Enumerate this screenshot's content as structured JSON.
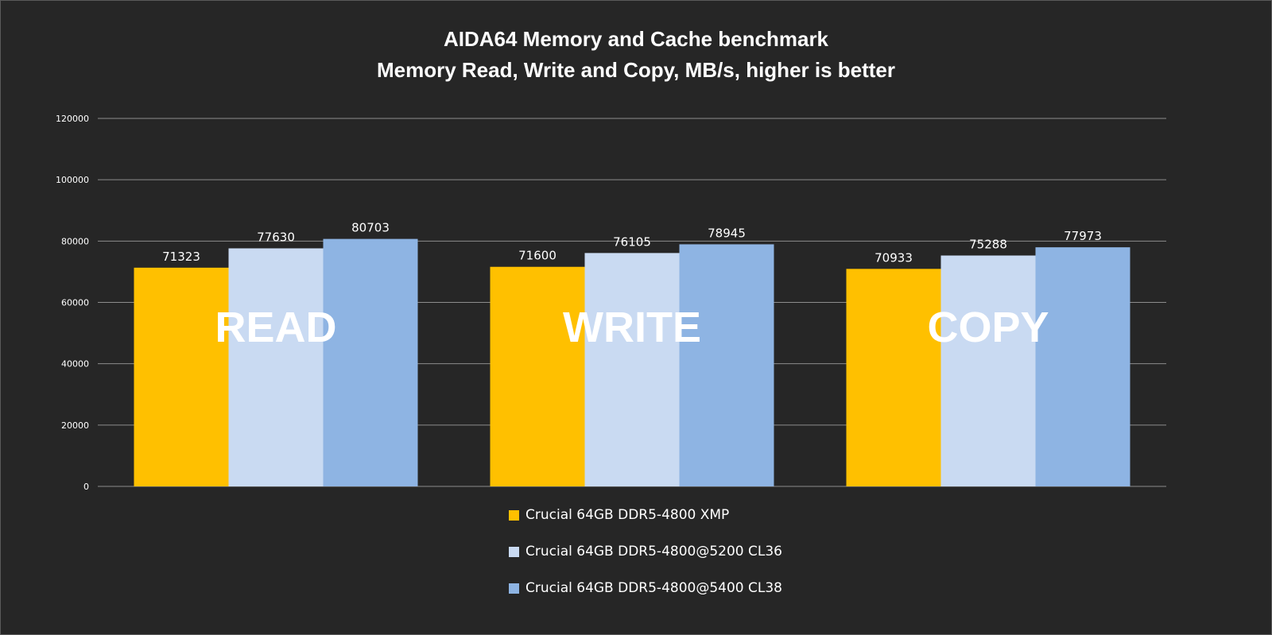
{
  "chart_data": {
    "type": "bar",
    "title": "AIDA64 Memory and Cache benchmark",
    "subtitle": "Memory Read, Write and Copy, MB/s, higher is better",
    "categories": [
      "READ",
      "WRITE",
      "COPY"
    ],
    "series": [
      {
        "name": "Crucial 64GB DDR5-4800 XMP",
        "color": "#FFC000",
        "values": [
          71323,
          71600,
          70933
        ]
      },
      {
        "name": "Crucial 64GB DDR5-4800@5200 CL36",
        "color": "#C9DAF2",
        "values": [
          77630,
          76105,
          75288
        ]
      },
      {
        "name": "Crucial 64GB DDR5-4800@5400 CL38",
        "color": "#8EB4E3",
        "values": [
          80703,
          78945,
          77973
        ]
      }
    ],
    "ylim": [
      0,
      120000
    ],
    "yticks": [
      0,
      20000,
      40000,
      60000,
      80000,
      100000,
      120000
    ],
    "grid": true,
    "legend": "bottom",
    "xlabel": "",
    "ylabel": ""
  },
  "colors": {
    "background": "#262626",
    "gridline": "#8c8c8c",
    "text": "#ffffff"
  }
}
